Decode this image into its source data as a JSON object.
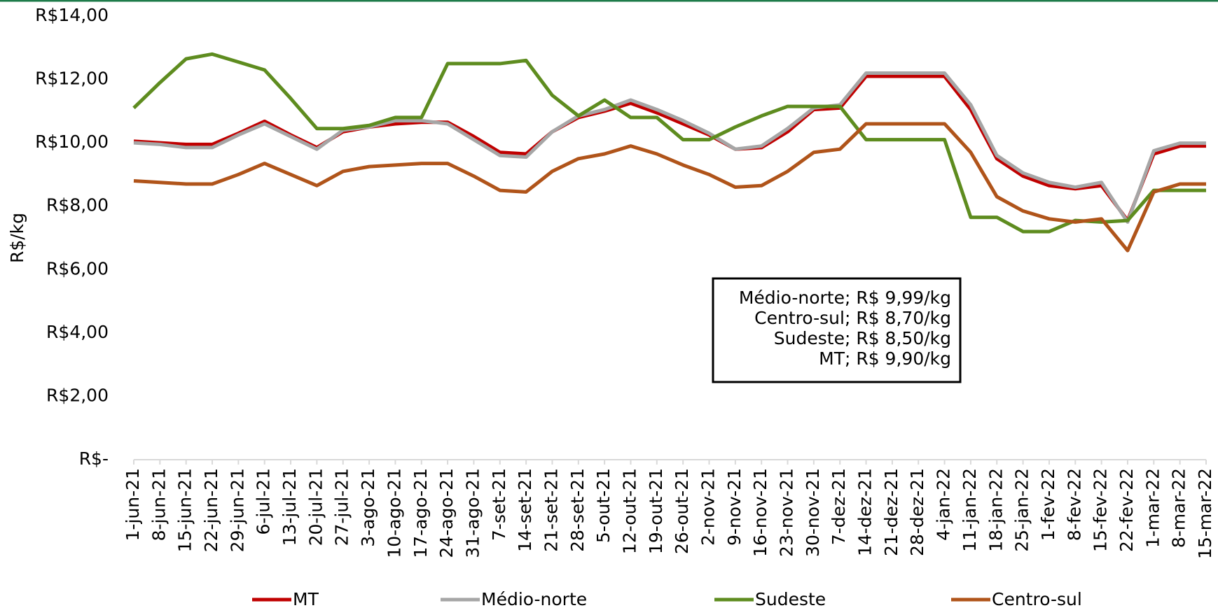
{
  "chart_data": {
    "type": "line",
    "y_label": "R$/kg",
    "categories": [
      "1-jun-21",
      "8-jun-21",
      "15-jun-21",
      "22-jun-21",
      "29-jun-21",
      "6-jul-21",
      "13-jul-21",
      "20-jul-21",
      "27-jul-21",
      "3-ago-21",
      "10-ago-21",
      "17-ago-21",
      "24-ago-21",
      "31-ago-21",
      "7-set-21",
      "14-set-21",
      "21-set-21",
      "28-set-21",
      "5-out-21",
      "12-out-21",
      "19-out-21",
      "26-out-21",
      "2-nov-21",
      "9-nov-21",
      "16-nov-21",
      "23-nov-21",
      "30-nov-21",
      "7-dez-21",
      "14-dez-21",
      "21-dez-21",
      "28-dez-21",
      "4-jan-22",
      "11-jan-22",
      "18-jan-22",
      "25-jan-22",
      "1-fev-22",
      "8-fev-22",
      "15-fev-22",
      "22-fev-22",
      "1-mar-22",
      "8-mar-22",
      "15-mar-22"
    ],
    "series": [
      {
        "name": "MT",
        "color": "#c00000",
        "values": [
          10.05,
          10.0,
          9.95,
          9.95,
          10.3,
          10.68,
          10.25,
          9.85,
          10.35,
          10.5,
          10.6,
          10.65,
          10.65,
          10.2,
          9.7,
          9.65,
          10.35,
          10.8,
          11.0,
          11.25,
          10.95,
          10.6,
          10.25,
          9.8,
          9.85,
          10.35,
          11.05,
          11.1,
          12.1,
          12.1,
          12.1,
          12.1,
          11.05,
          9.5,
          8.95,
          8.65,
          8.55,
          8.65,
          7.55,
          9.65,
          9.9,
          9.9
        ]
      },
      {
        "name": "Médio-norte",
        "color": "#a6a6a6",
        "values": [
          10.0,
          9.95,
          9.85,
          9.85,
          10.25,
          10.6,
          10.2,
          9.8,
          10.4,
          10.5,
          10.7,
          10.7,
          10.6,
          10.1,
          9.6,
          9.55,
          10.35,
          10.85,
          11.05,
          11.35,
          11.05,
          10.7,
          10.3,
          9.8,
          9.9,
          10.45,
          11.1,
          11.2,
          12.2,
          12.2,
          12.2,
          12.2,
          11.2,
          9.6,
          9.05,
          8.75,
          8.6,
          8.75,
          7.5,
          9.75,
          9.99,
          9.99
        ]
      },
      {
        "name": "Sudeste",
        "color": "#5e8c1f",
        "values": [
          11.1,
          11.9,
          12.65,
          12.8,
          12.55,
          12.3,
          11.4,
          10.45,
          10.45,
          10.55,
          10.8,
          10.8,
          12.5,
          12.5,
          12.5,
          12.6,
          11.5,
          10.85,
          11.35,
          10.8,
          10.8,
          10.1,
          10.1,
          10.5,
          10.85,
          11.15,
          11.15,
          11.15,
          10.1,
          10.1,
          10.1,
          10.1,
          7.65,
          7.65,
          7.2,
          7.2,
          7.55,
          7.5,
          7.55,
          8.5,
          8.5,
          8.5
        ]
      },
      {
        "name": "Centro-sul",
        "color": "#b0541a",
        "values": [
          8.8,
          8.75,
          8.7,
          8.7,
          9.0,
          9.35,
          9.0,
          8.65,
          9.1,
          9.25,
          9.3,
          9.35,
          9.35,
          8.95,
          8.5,
          8.45,
          9.1,
          9.5,
          9.65,
          9.9,
          9.65,
          9.3,
          9.0,
          8.6,
          8.65,
          9.1,
          9.7,
          9.8,
          10.6,
          10.6,
          10.6,
          10.6,
          9.7,
          8.3,
          7.85,
          7.6,
          7.5,
          7.6,
          6.6,
          8.45,
          8.7,
          8.7
        ]
      }
    ],
    "ylim": [
      0,
      14
    ],
    "yticks": [
      {
        "value": 0,
        "label": "R$-"
      },
      {
        "value": 2,
        "label": "R$2,00"
      },
      {
        "value": 4,
        "label": "R$4,00"
      },
      {
        "value": 6,
        "label": "R$6,00"
      },
      {
        "value": 8,
        "label": "R$8,00"
      },
      {
        "value": 10,
        "label": "R$10,00"
      },
      {
        "value": 12,
        "label": "R$12,00"
      },
      {
        "value": 14,
        "label": "R$14,00"
      }
    ],
    "annotation": [
      "Médio-norte; R$ 9,99/kg",
      "Centro-sul; R$ 8,70/kg",
      "Sudeste; R$ 8,50/kg",
      "MT; R$ 9,90/kg"
    ],
    "legend": "bottom"
  }
}
